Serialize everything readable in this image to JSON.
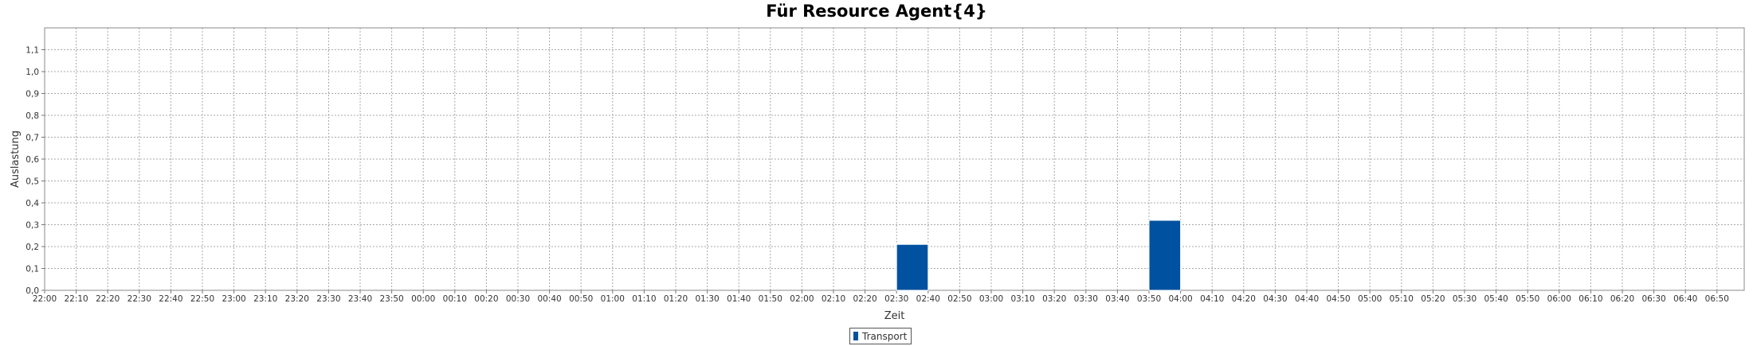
{
  "chart_data": {
    "type": "bar",
    "title": "Für Resource Agent{4}",
    "xlabel": "Zeit",
    "ylabel": "Auslastung",
    "ylim": [
      0,
      1.2
    ],
    "y_ticks": [
      "0,0",
      "0,1",
      "0,2",
      "0,3",
      "0,4",
      "0,5",
      "0,6",
      "0,7",
      "0,8",
      "0,9",
      "1,0",
      "1,1"
    ],
    "x_ticks": [
      "22:00",
      "22:10",
      "22:20",
      "22:30",
      "22:40",
      "22:50",
      "23:00",
      "23:10",
      "23:20",
      "23:30",
      "23:40",
      "23:50",
      "00:00",
      "00:10",
      "00:20",
      "00:30",
      "00:40",
      "00:50",
      "01:00",
      "01:10",
      "01:20",
      "01:30",
      "01:40",
      "01:50",
      "02:00",
      "02:10",
      "02:20",
      "02:30",
      "02:40",
      "02:50",
      "03:00",
      "03:10",
      "03:20",
      "03:30",
      "03:40",
      "03:50",
      "04:00",
      "04:10",
      "04:20",
      "04:30",
      "04:40",
      "04:50",
      "05:00",
      "05:10",
      "05:20",
      "05:30",
      "05:40",
      "05:50",
      "06:00",
      "06:10",
      "06:20",
      "06:30",
      "06:40",
      "06:50"
    ],
    "series": [
      {
        "name": "Transport",
        "color": "#0051a0",
        "bars": [
          {
            "start": "02:30",
            "end": "02:40",
            "value": 0.21
          },
          {
            "start": "03:50",
            "end": "04:00",
            "value": 0.32
          }
        ]
      }
    ],
    "grid": true,
    "legend_position": "bottom-center"
  }
}
